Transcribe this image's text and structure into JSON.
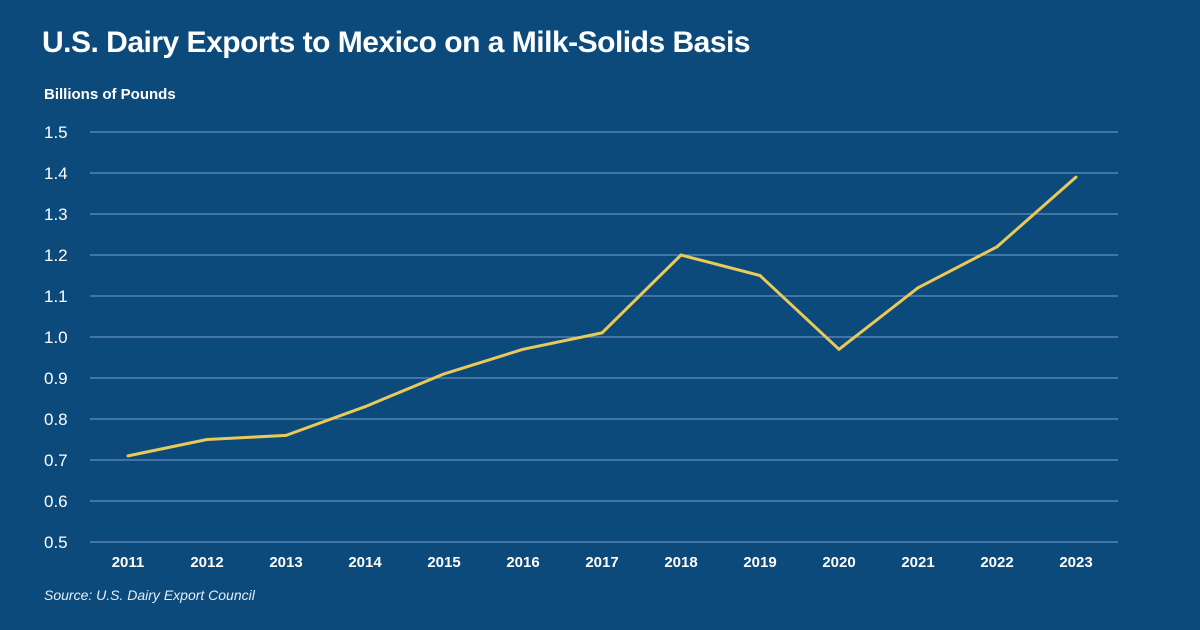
{
  "chart_data": {
    "type": "line",
    "title": "U.S. Dairy Exports to Mexico on a Milk-Solids Basis",
    "ylabel": "Billions of Pounds",
    "xlabel": "",
    "source": "Source: U.S. Dairy Export Council",
    "ylim": [
      0.5,
      1.5
    ],
    "yticks": [
      "0.5",
      "0.6",
      "0.7",
      "0.8",
      "0.9",
      "1.0",
      "1.1",
      "1.2",
      "1.3",
      "1.4",
      "1.5"
    ],
    "categories": [
      "2011",
      "2012",
      "2013",
      "2014",
      "2015",
      "2016",
      "2017",
      "2018",
      "2019",
      "2020",
      "2021",
      "2022",
      "2023"
    ],
    "values": [
      0.71,
      0.75,
      0.76,
      0.83,
      0.91,
      0.97,
      1.01,
      1.2,
      1.15,
      0.97,
      1.12,
      1.22,
      1.39
    ],
    "grid": true,
    "colors": {
      "background": "#0c4a7b",
      "line": "#e8c95a",
      "grid": "#5f8fbd"
    }
  }
}
